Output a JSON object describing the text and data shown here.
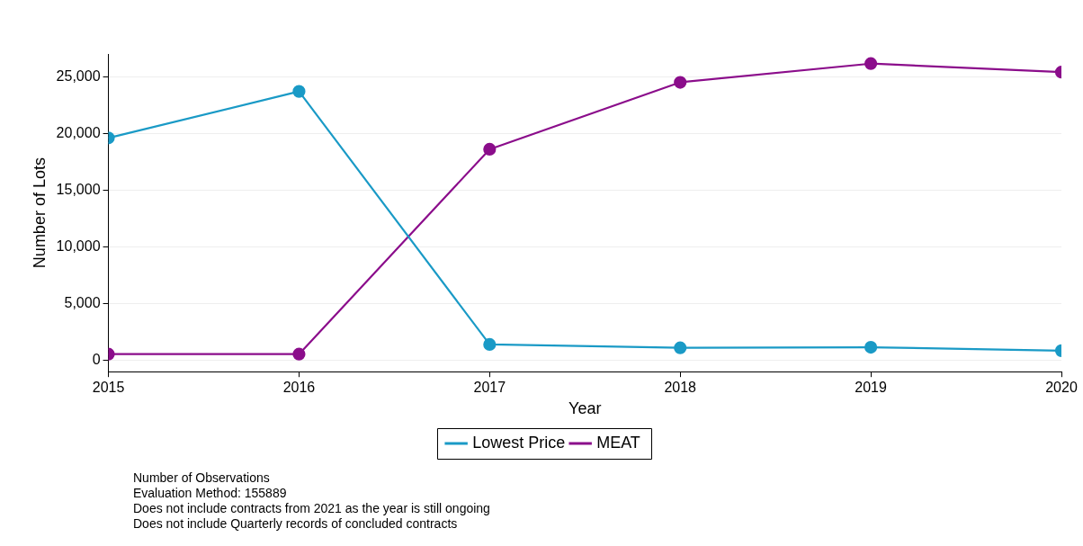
{
  "chart_data": {
    "type": "line",
    "xlabel": "Year",
    "ylabel": "Number of Lots",
    "x": [
      2015,
      2016,
      2017,
      2018,
      2019,
      2020
    ],
    "series": [
      {
        "name": "Lowest Price",
        "color": "#1a9ac6",
        "values": [
          19600,
          23700,
          1400,
          1100,
          1150,
          850
        ]
      },
      {
        "name": "MEAT",
        "color": "#8b0d8b",
        "values": [
          550,
          550,
          18600,
          24500,
          26150,
          25400
        ]
      }
    ],
    "xlim": [
      2015,
      2020
    ],
    "xticks": [
      2015,
      2016,
      2017,
      2018,
      2019,
      2020
    ],
    "ylim": [
      -1000,
      27000
    ],
    "yticks": [
      {
        "value": 0,
        "label": "0"
      },
      {
        "value": 5000,
        "label": "5,000"
      },
      {
        "value": 10000,
        "label": "10,000"
      },
      {
        "value": 15000,
        "label": "15,000"
      },
      {
        "value": 20000,
        "label": "20,000"
      },
      {
        "value": 25000,
        "label": "25,000"
      }
    ],
    "grid": "y",
    "legend": "bottom",
    "marker": "circle",
    "line_style": "solid",
    "annotations": [
      "Number of Observations",
      "Evaluation Method: 155889",
      "Does not include contracts from 2021 as the year is still ongoing",
      "Does not include Quarterly records of concluded contracts"
    ]
  }
}
